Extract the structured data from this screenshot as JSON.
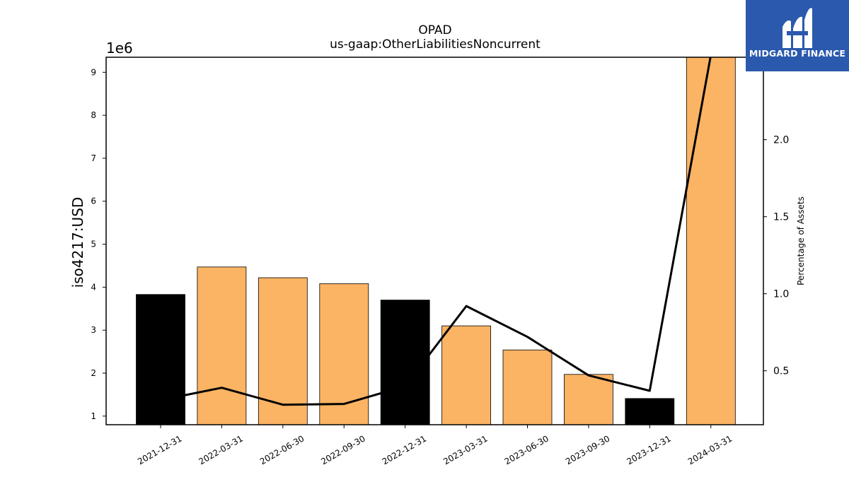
{
  "chart_data": {
    "type": "bar",
    "title": "OPAD",
    "subtitle": "us-gaap:OtherLiabilitiesNoncurrent",
    "ylabel": "iso4217:USD",
    "y_offset_label": "1e6",
    "y2label": "Percentage of Assets",
    "categories": [
      "2021-12-31",
      "2022-03-31",
      "2022-06-30",
      "2022-09-30",
      "2022-12-31",
      "2023-03-31",
      "2023-06-30",
      "2023-09-30",
      "2023-12-31",
      "2024-03-31"
    ],
    "series": [
      {
        "type": "bar",
        "values": [
          3.83,
          4.47,
          4.22,
          4.08,
          3.7,
          3.1,
          2.54,
          1.97,
          1.41,
          9.35
        ],
        "colors": [
          "#000000",
          "#fbb364",
          "#fbb364",
          "#fbb364",
          "#000000",
          "#fbb364",
          "#fbb364",
          "#fbb364",
          "#000000",
          "#fbb364"
        ]
      },
      {
        "type": "line",
        "axis": "right",
        "values": [
          0.31,
          0.39,
          0.28,
          0.285,
          0.4,
          0.92,
          0.72,
          0.47,
          0.37,
          2.55
        ],
        "color": "#000000"
      }
    ],
    "ylim": [
      0.8,
      9.35
    ],
    "y2lim": [
      0.15,
      2.535
    ],
    "yticks": [
      1,
      2,
      3,
      4,
      5,
      6,
      7,
      8,
      9
    ],
    "y2ticks": [
      "0.5",
      "1.0",
      "1.5",
      "2.0"
    ],
    "grid": false
  },
  "logo": {
    "text": "MIDGARD FINANCE",
    "background": "#2b59ad"
  }
}
